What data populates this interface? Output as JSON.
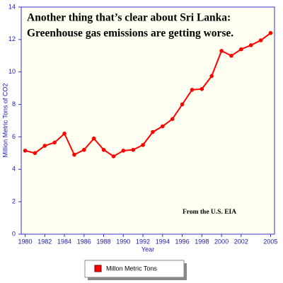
{
  "chart_data": {
    "type": "line",
    "title": [
      "Another thing that’s clear about Sri Lanka:",
      "Greenhouse gas emissions are getting worse."
    ],
    "annotation": "From the U.S. EIA",
    "x_label": "Year",
    "y_label": "Million Metric Tons of CO2",
    "x": [
      1980,
      1981,
      1982,
      1983,
      1984,
      1985,
      1986,
      1987,
      1988,
      1989,
      1990,
      1991,
      1992,
      1993,
      1994,
      1995,
      1996,
      1997,
      1998,
      1999,
      2000,
      2001,
      2002,
      2003,
      2004,
      2005
    ],
    "series": [
      {
        "name": "Millon Metric Tons",
        "color": "#ff0000",
        "values": [
          5.15,
          5.0,
          5.45,
          5.65,
          6.2,
          4.9,
          5.2,
          5.9,
          5.2,
          4.8,
          5.15,
          5.2,
          5.5,
          6.3,
          6.65,
          7.1,
          8.0,
          8.9,
          8.95,
          9.75,
          11.3,
          11.0,
          11.4,
          11.65,
          11.95,
          12.4
        ]
      }
    ],
    "xlim": [
      1979.6,
      2005.4
    ],
    "xticks": [
      1980,
      1982,
      1984,
      1986,
      1988,
      1990,
      1992,
      1994,
      1996,
      1998,
      2000,
      2002,
      2005
    ],
    "ylim": [
      0,
      14
    ],
    "yticks": [
      0,
      2,
      4,
      6,
      8,
      10,
      12,
      14
    ],
    "grid": false,
    "legend": "bottom"
  }
}
